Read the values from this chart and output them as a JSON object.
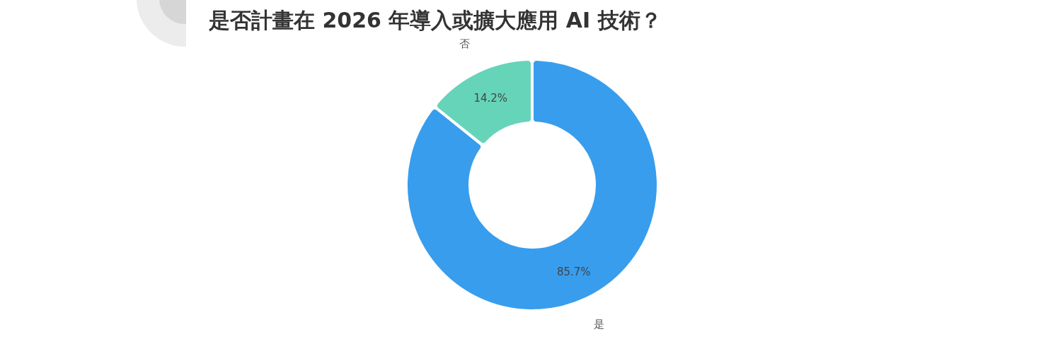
{
  "chart_data": {
    "type": "donut",
    "title": "是否計畫在 2026 年導入或擴大應用 AI 技術？",
    "categories": [
      "是",
      "否"
    ],
    "values": [
      85.7,
      14.2
    ],
    "colors": [
      "#389ded",
      "#66d4b9"
    ],
    "value_labels": [
      "85.7%",
      "14.2%"
    ]
  }
}
